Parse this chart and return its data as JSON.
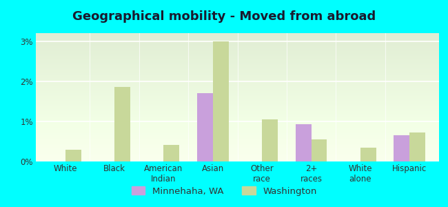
{
  "title": "Geographical mobility - Moved from abroad",
  "categories": [
    "White",
    "Black",
    "American\nIndian",
    "Asian",
    "Other\nrace",
    "2+\nraces",
    "White\nalone",
    "Hispanic"
  ],
  "minnehaha_values": [
    0,
    0,
    0,
    1.7,
    0,
    0.93,
    0,
    0.65
  ],
  "washington_values": [
    0.3,
    1.85,
    0.42,
    3.0,
    1.05,
    0.55,
    0.35,
    0.73
  ],
  "minnehaha_color": "#c9a0dc",
  "washington_color": "#c8d89a",
  "background_color": "#00ffff",
  "ylim": [
    0,
    3.2
  ],
  "yticks": [
    0,
    1,
    2,
    3
  ],
  "ytick_labels": [
    "0%",
    "1%",
    "2%",
    "3%"
  ],
  "legend_minnehaha": "Minnehaha, WA",
  "legend_washington": "Washington",
  "bar_width": 0.32,
  "title_fontsize": 13,
  "tick_fontsize": 8.5,
  "legend_fontsize": 9.5
}
